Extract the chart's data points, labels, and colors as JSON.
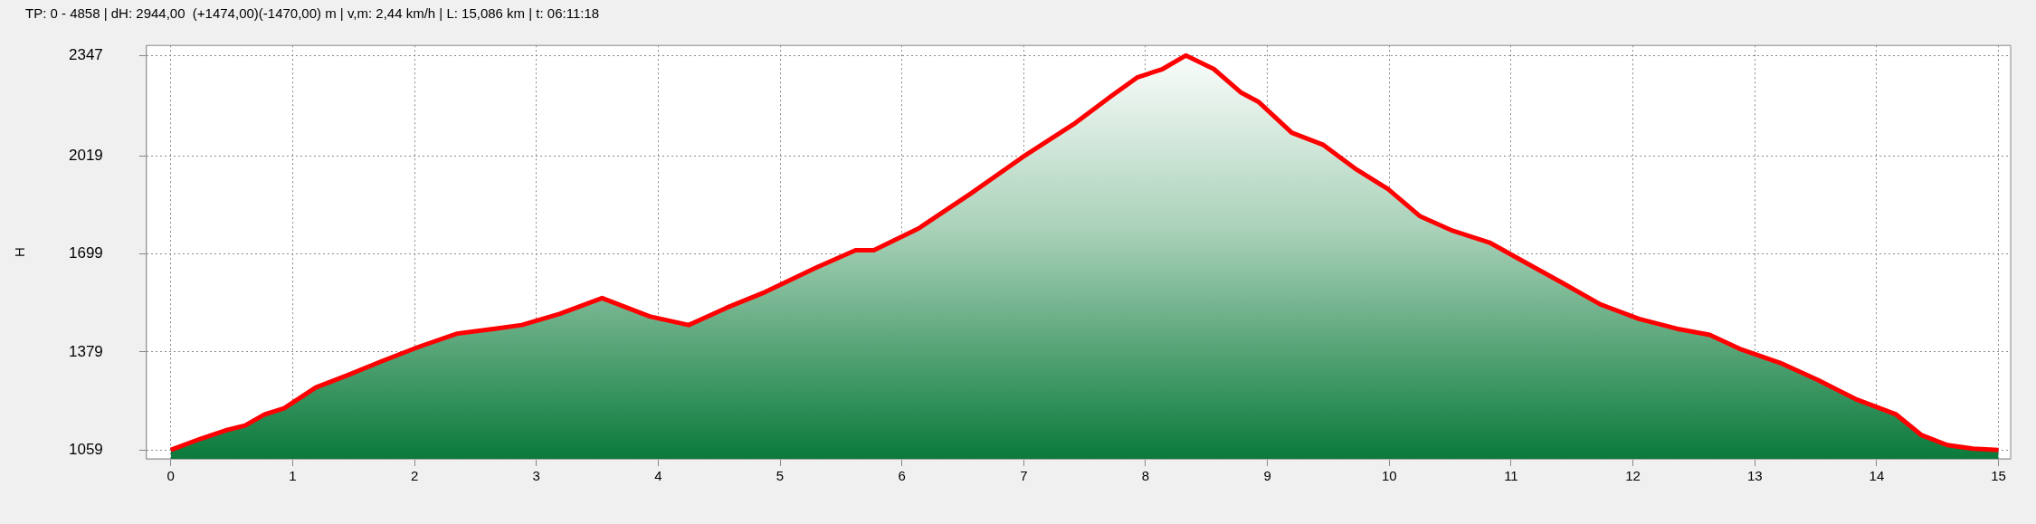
{
  "chart_data": {
    "type": "area",
    "title": "TP: 0 - 4858 | dH: 2944,00  (+1474,00)(-1470,00) m | v,m: 2,44 km/h | L: 15,086 km | t: 06:11:18",
    "ylabel": "H",
    "x": [
      0,
      0.24,
      0.45,
      0.61,
      0.77,
      0.93,
      1.19,
      1.45,
      1.72,
      2.03,
      2.35,
      2.66,
      2.88,
      3.19,
      3.54,
      3.93,
      4.25,
      4.56,
      4.88,
      5.3,
      5.62,
      5.77,
      6.14,
      6.56,
      6.99,
      7.41,
      7.72,
      7.93,
      8.14,
      8.33,
      8.56,
      8.78,
      8.93,
      9.2,
      9.46,
      9.73,
      9.99,
      10.25,
      10.52,
      10.83,
      11.1,
      11.41,
      11.73,
      12.05,
      12.36,
      12.63,
      12.89,
      13.21,
      13.52,
      13.84,
      14.16,
      14.37,
      14.58,
      14.79,
      15
    ],
    "series": [
      {
        "color": "#ff0000",
        "values": [
          1059,
          1095,
          1123,
          1139,
          1175,
          1195,
          1263,
          1303,
          1347,
          1395,
          1439,
          1455,
          1467,
          1503,
          1555,
          1495,
          1467,
          1523,
          1575,
          1655,
          1711,
          1711,
          1783,
          1895,
          2015,
          2123,
          2215,
          2275,
          2303,
          2347,
          2303,
          2227,
          2195,
          2095,
          2055,
          1975,
          1911,
          1823,
          1775,
          1735,
          1675,
          1607,
          1535,
          1487,
          1455,
          1435,
          1387,
          1343,
          1287,
          1223,
          1175,
          1107,
          1075,
          1063,
          1059
        ]
      }
    ],
    "xlim": [
      -0.2,
      15.1
    ],
    "ylim": [
      1030,
      2380
    ],
    "xticks": [
      0,
      1,
      2,
      3,
      4,
      5,
      6,
      7,
      8,
      9,
      10,
      11,
      12,
      13,
      14,
      15
    ],
    "yticks": [
      1059,
      1379,
      1699,
      2019,
      2347
    ],
    "grid": true,
    "legend": false,
    "marker": "none",
    "line_style": "solid"
  }
}
